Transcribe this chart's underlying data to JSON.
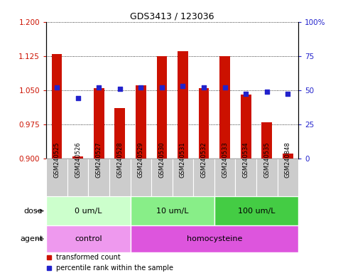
{
  "title": "GDS3413 / 123036",
  "samples": [
    "GSM240525",
    "GSM240526",
    "GSM240527",
    "GSM240528",
    "GSM240529",
    "GSM240530",
    "GSM240531",
    "GSM240532",
    "GSM240533",
    "GSM240534",
    "GSM240535",
    "GSM240848"
  ],
  "transformed_count": [
    1.13,
    0.905,
    1.055,
    1.01,
    1.06,
    1.125,
    1.135,
    1.055,
    1.125,
    1.04,
    0.98,
    0.91
  ],
  "percentile_rank": [
    52,
    44,
    52,
    51,
    52,
    52,
    53,
    52,
    52,
    47,
    49,
    47
  ],
  "ylim_left": [
    0.9,
    1.2
  ],
  "ylim_right": [
    0,
    100
  ],
  "yticks_left": [
    0.9,
    0.975,
    1.05,
    1.125,
    1.2
  ],
  "yticks_right": [
    0,
    25,
    50,
    75,
    100
  ],
  "ytick_labels_right": [
    "0",
    "25",
    "50",
    "75",
    "100%"
  ],
  "bar_color": "#cc1100",
  "dot_color": "#2222cc",
  "dose_groups": [
    {
      "label": "0 um/L",
      "start": 0,
      "end": 4,
      "color": "#ccffcc"
    },
    {
      "label": "10 um/L",
      "start": 4,
      "end": 8,
      "color": "#88ee88"
    },
    {
      "label": "100 um/L",
      "start": 8,
      "end": 12,
      "color": "#44cc44"
    }
  ],
  "agent_groups": [
    {
      "label": "control",
      "start": 0,
      "end": 4,
      "color": "#ee99ee"
    },
    {
      "label": "homocysteine",
      "start": 4,
      "end": 12,
      "color": "#dd55dd"
    }
  ],
  "legend_items": [
    {
      "label": "transformed count",
      "color": "#cc1100"
    },
    {
      "label": "percentile rank within the sample",
      "color": "#2222cc"
    }
  ],
  "tick_color_left": "#cc1100",
  "tick_color_right": "#2222cc",
  "sample_box_color": "#cccccc",
  "border_color": "#888888"
}
